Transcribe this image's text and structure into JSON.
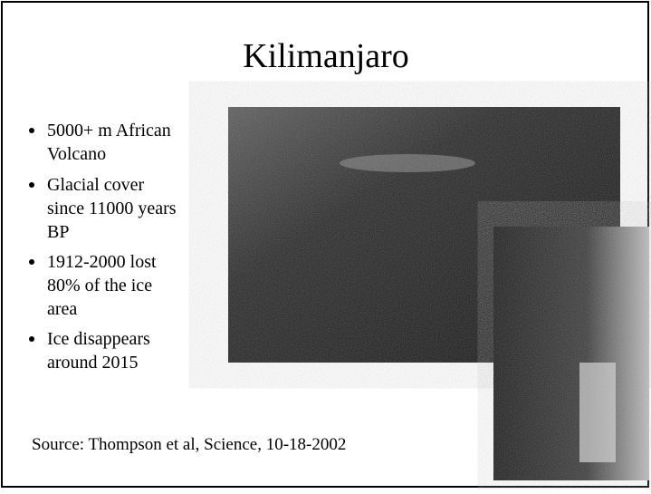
{
  "slide": {
    "title": "Kilimanjaro",
    "bullets": [
      [
        "5000+ m African",
        "Volcano"
      ],
      [
        "Glacial cover",
        "since 11000 years",
        "BP"
      ],
      [
        "1912-2000 lost",
        "80% of the ice",
        "area"
      ],
      [
        "Ice disappears",
        "around  2015"
      ]
    ],
    "source": "Source: Thompson et al, Science, 10-18-2002"
  }
}
